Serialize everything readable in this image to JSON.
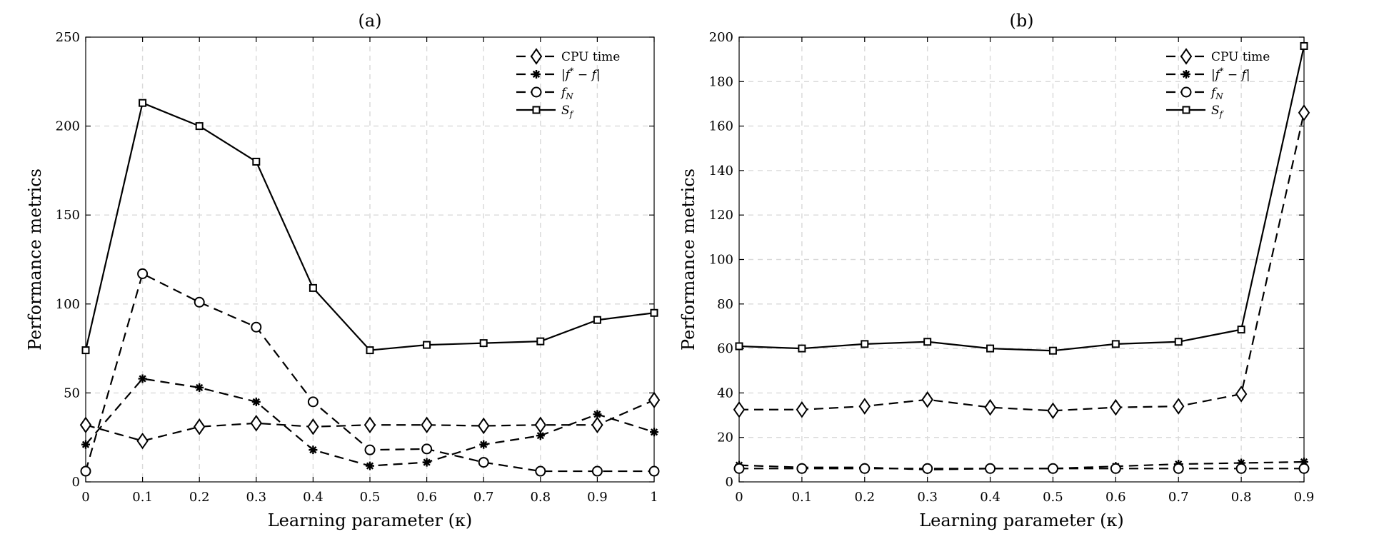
{
  "chart_data": [
    {
      "type": "line",
      "title": "(a)",
      "xlabel": "Learning parameter (κ)",
      "ylabel": "Performance metrics",
      "x": [
        0,
        0.1,
        0.2,
        0.3,
        0.4,
        0.5,
        0.6,
        0.7,
        0.8,
        0.9,
        1
      ],
      "xticks": [
        "0",
        "0.1",
        "0.2",
        "0.3",
        "0.4",
        "0.5",
        "0.6",
        "0.7",
        "0.8",
        "0.9",
        "1"
      ],
      "xlim": [
        0,
        1
      ],
      "ylim": [
        0,
        250
      ],
      "yticks": [
        "0",
        "50",
        "100",
        "150",
        "200",
        "250"
      ],
      "grid": true,
      "legend_position": "top-right",
      "series": [
        {
          "name": "CPU time",
          "legend_label": "CPU time",
          "marker": "diamond",
          "dashed": true,
          "values": [
            32,
            23,
            31,
            33,
            31,
            32,
            32,
            31.5,
            32,
            32,
            46
          ]
        },
        {
          "name": "|f* - f|",
          "legend_label": "|f* − f|",
          "marker": "star",
          "dashed": true,
          "values": [
            21,
            58,
            53,
            45,
            18,
            9,
            11,
            21,
            26,
            38,
            28
          ]
        },
        {
          "name": "f_N",
          "legend_label": "fN",
          "marker": "circle",
          "dashed": true,
          "values": [
            6,
            117,
            101,
            87,
            45,
            18,
            18.5,
            11,
            6,
            6,
            6
          ]
        },
        {
          "name": "S_f",
          "legend_label": "Sf",
          "marker": "square",
          "dashed": false,
          "values": [
            74,
            213,
            200,
            180,
            109,
            74,
            77,
            78,
            79,
            91,
            95
          ]
        }
      ]
    },
    {
      "type": "line",
      "title": "(b)",
      "xlabel": "Learning parameter (κ)",
      "ylabel": "Performance metrics",
      "x": [
        0,
        0.1,
        0.2,
        0.3,
        0.4,
        0.5,
        0.6,
        0.7,
        0.8,
        0.9
      ],
      "xticks": [
        "0",
        "0.1",
        "0.2",
        "0.3",
        "0.4",
        "0.5",
        "0.6",
        "0.7",
        "0.8",
        "0.9"
      ],
      "xlim": [
        0,
        0.9
      ],
      "ylim": [
        0,
        200
      ],
      "yticks": [
        "0",
        "20",
        "40",
        "60",
        "80",
        "100",
        "120",
        "140",
        "160",
        "180",
        "200"
      ],
      "grid": true,
      "legend_position": "top-right",
      "series": [
        {
          "name": "CPU time",
          "legend_label": "CPU time",
          "marker": "diamond",
          "dashed": true,
          "values": [
            32.5,
            32.5,
            34,
            37,
            33.5,
            32,
            33.5,
            34,
            39.5,
            166
          ]
        },
        {
          "name": "|f* - f|",
          "legend_label": "|f* − f|",
          "marker": "star",
          "dashed": true,
          "values": [
            7.5,
            6.5,
            6.5,
            5.5,
            6,
            6,
            7,
            8,
            8.5,
            9
          ]
        },
        {
          "name": "f_N",
          "legend_label": "fN",
          "marker": "circle",
          "dashed": true,
          "values": [
            6,
            6,
            6,
            6,
            6,
            6,
            6,
            6,
            6,
            6
          ]
        },
        {
          "name": "S_f",
          "legend_label": "Sf",
          "marker": "square",
          "dashed": false,
          "values": [
            61,
            60,
            62,
            63,
            60,
            59,
            62,
            63,
            68.5,
            196
          ]
        }
      ]
    }
  ]
}
